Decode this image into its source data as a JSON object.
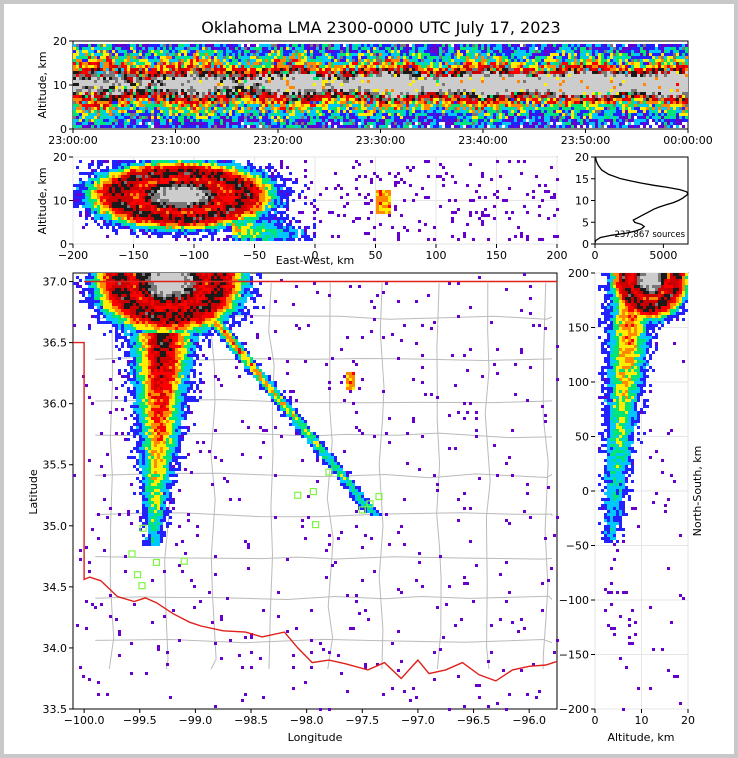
{
  "title": "Oklahoma LMA 2300-0000 UTC July 17, 2023",
  "chart_data": [
    {
      "panel": "altitude-time",
      "type": "heatmap",
      "xlabel": "",
      "ylabel": "Altitude, km",
      "x_ticks": [
        "23:00:00",
        "23:10:00",
        "23:20:00",
        "23:30:00",
        "23:40:00",
        "23:50:00",
        "00:00:00"
      ],
      "y_ticks": [
        0,
        10,
        20
      ],
      "xlim": [
        "23:00:00",
        "00:00:00"
      ],
      "ylim": [
        0,
        20
      ]
    },
    {
      "panel": "altitude-eastwest",
      "type": "heatmap",
      "xlabel": "East-West, km",
      "ylabel": "Altitude, km",
      "x_ticks": [
        -200,
        -150,
        -100,
        -50,
        0,
        50,
        100,
        150,
        200
      ],
      "y_ticks": [
        0,
        10,
        20
      ],
      "xlim": [
        -200,
        200
      ],
      "ylim": [
        0,
        20
      ],
      "grid": true
    },
    {
      "panel": "altitude-histogram",
      "type": "line",
      "annotation": "237,867 sources",
      "x_ticks": [
        0,
        5000
      ],
      "y_ticks": [
        0,
        5,
        10,
        15,
        20
      ],
      "xlim": [
        0,
        6800
      ],
      "ylim": [
        0,
        20
      ],
      "altitude_km": [
        0.3,
        0.8,
        1.5,
        2,
        2.5,
        3,
        3.5,
        4,
        4.5,
        5,
        5.5,
        6,
        6.5,
        7,
        7.5,
        8,
        8.5,
        9,
        9.5,
        10,
        10.5,
        11,
        11.5,
        12,
        12.5,
        13,
        13.5,
        14,
        14.5,
        15,
        16,
        17,
        18,
        19,
        20
      ],
      "sources": [
        0,
        50,
        400,
        1200,
        2300,
        3000,
        3400,
        3600,
        3400,
        2900,
        2800,
        3100,
        3400,
        3700,
        4000,
        4300,
        4700,
        5200,
        5700,
        6100,
        6400,
        6600,
        6800,
        6700,
        6200,
        5300,
        4300,
        3400,
        2600,
        1900,
        1000,
        500,
        250,
        100,
        30
      ]
    },
    {
      "panel": "plan-view",
      "type": "heatmap",
      "xlabel": "Longitude",
      "ylabel": "Latitude",
      "x_ticks": [
        -100.0,
        -99.5,
        -99.0,
        -98.5,
        -98.0,
        -97.5,
        -97.0,
        -96.5,
        -96.0
      ],
      "y_ticks": [
        33.5,
        34.0,
        34.5,
        35.0,
        35.5,
        36.0,
        36.5,
        37.0
      ],
      "xlim": [
        -100.1,
        -95.75
      ],
      "ylim": [
        33.5,
        37.07
      ],
      "stations": [
        {
          "lon": -99.57,
          "lat": 34.77
        },
        {
          "lon": -99.52,
          "lat": 34.6
        },
        {
          "lon": -99.48,
          "lat": 34.51
        },
        {
          "lon": -99.35,
          "lat": 34.7
        },
        {
          "lon": -99.1,
          "lat": 34.71
        },
        {
          "lon": -99.47,
          "lat": 34.98
        },
        {
          "lon": -98.08,
          "lat": 35.25
        },
        {
          "lon": -97.94,
          "lat": 35.28
        },
        {
          "lon": -97.92,
          "lat": 35.01
        },
        {
          "lon": -97.8,
          "lat": 35.44
        },
        {
          "lon": -97.5,
          "lat": 35.13
        },
        {
          "lon": -97.43,
          "lat": 35.18
        },
        {
          "lon": -97.35,
          "lat": 35.24
        }
      ]
    },
    {
      "panel": "altitude-northsouth",
      "type": "heatmap",
      "xlabel": "Altitude, km",
      "ylabel": "North-South, km",
      "x_ticks": [
        0,
        10,
        20
      ],
      "y_ticks": [
        -200,
        -150,
        -100,
        -50,
        0,
        50,
        100,
        150,
        200
      ],
      "xlim": [
        0,
        20
      ],
      "ylim": [
        -200,
        200
      ],
      "grid": true
    }
  ],
  "colors": {
    "state_border": "#e0201a",
    "county_lines": "#bbbbbb",
    "station_marker": "#7ef542",
    "density_scale": [
      "#6600cc",
      "#2222ff",
      "#00c8ff",
      "#00e676",
      "#ffee00",
      "#ff8800",
      "#ff0000",
      "#cc0000",
      "#1a1a1a",
      "#777777",
      "#cccccc"
    ]
  }
}
